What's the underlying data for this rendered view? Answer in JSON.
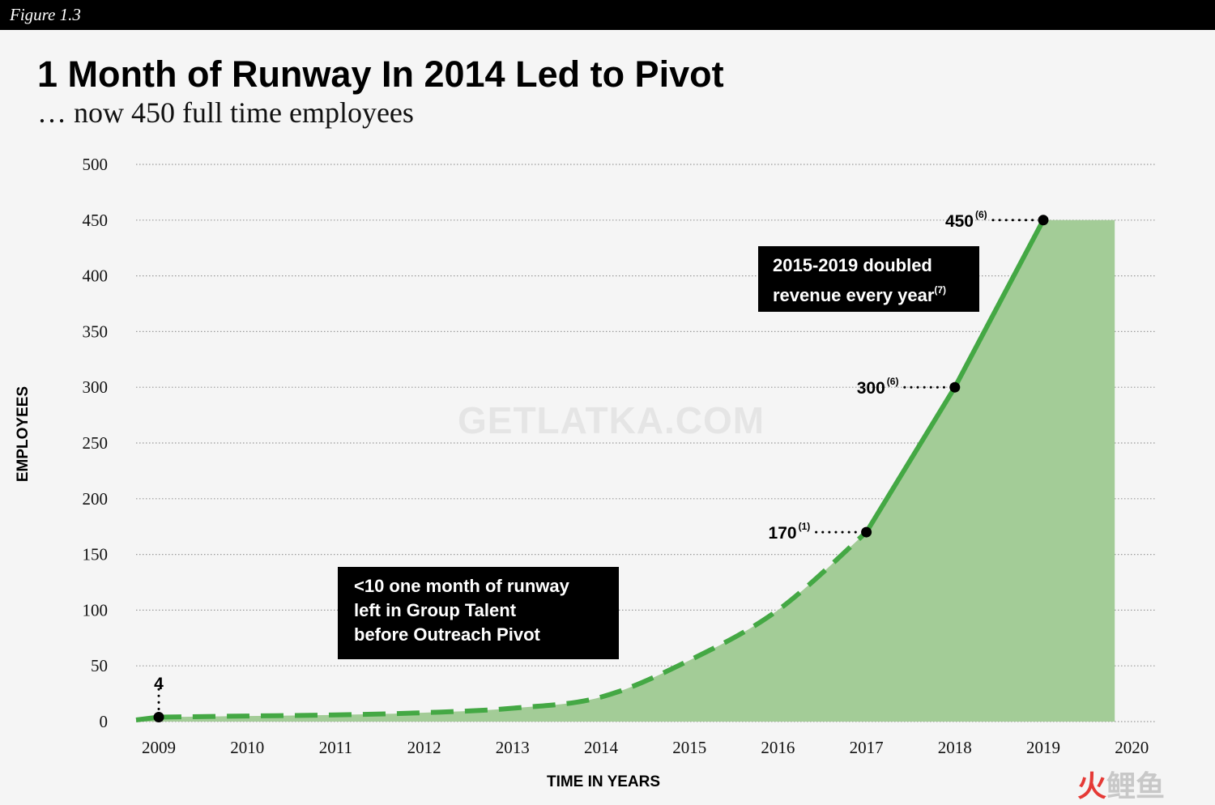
{
  "figure_label": "Figure 1.3",
  "title": "1 Month of Runway In 2014 Led to Pivot",
  "subtitle": "… now 450 full time employees",
  "watermark": "GETLATKA.COM",
  "corner_mark": {
    "first": "火",
    "rest": "鲤鱼"
  },
  "notes": {
    "runway": {
      "lines": [
        "<10 one month of runway",
        "left in Group Talent",
        "before Outreach Pivot"
      ]
    },
    "revenue": {
      "line1": "2015-2019 doubled",
      "line2": "revenue every year",
      "sup": "(7)"
    }
  },
  "colors": {
    "area": "#a3cc97",
    "line": "#44a844",
    "marker": "#000000",
    "grid": "#9a9a9a"
  },
  "chart_data": {
    "type": "area",
    "title": "1 Month of Runway In 2014 Led to Pivot",
    "subtitle": "… now 450 full time employees",
    "xlabel": "TIME IN YEARS",
    "ylabel": "EMPLOYEES",
    "categories": [
      "2009",
      "2010",
      "2011",
      "2012",
      "2013",
      "2014",
      "2015",
      "2016",
      "2017",
      "2018",
      "2019",
      "2020"
    ],
    "ylim": [
      0,
      500
    ],
    "yticks": [
      0,
      50,
      100,
      150,
      200,
      250,
      300,
      350,
      400,
      450,
      500
    ],
    "grid": "horizontal dotted",
    "series": [
      {
        "values": [
          4,
          5,
          6,
          8,
          12,
          22,
          55,
          100,
          170,
          300,
          450,
          450
        ],
        "style": "dashed until 2017, solid after"
      }
    ],
    "labeled_points": [
      {
        "year": "2009",
        "value": 4,
        "label": "4",
        "sup": ""
      },
      {
        "year": "2017",
        "value": 170,
        "label": "170",
        "sup": "(1)"
      },
      {
        "year": "2018",
        "value": 300,
        "label": "300",
        "sup": "(6)"
      },
      {
        "year": "2019",
        "value": 450,
        "label": "450",
        "sup": "(6)"
      }
    ]
  }
}
